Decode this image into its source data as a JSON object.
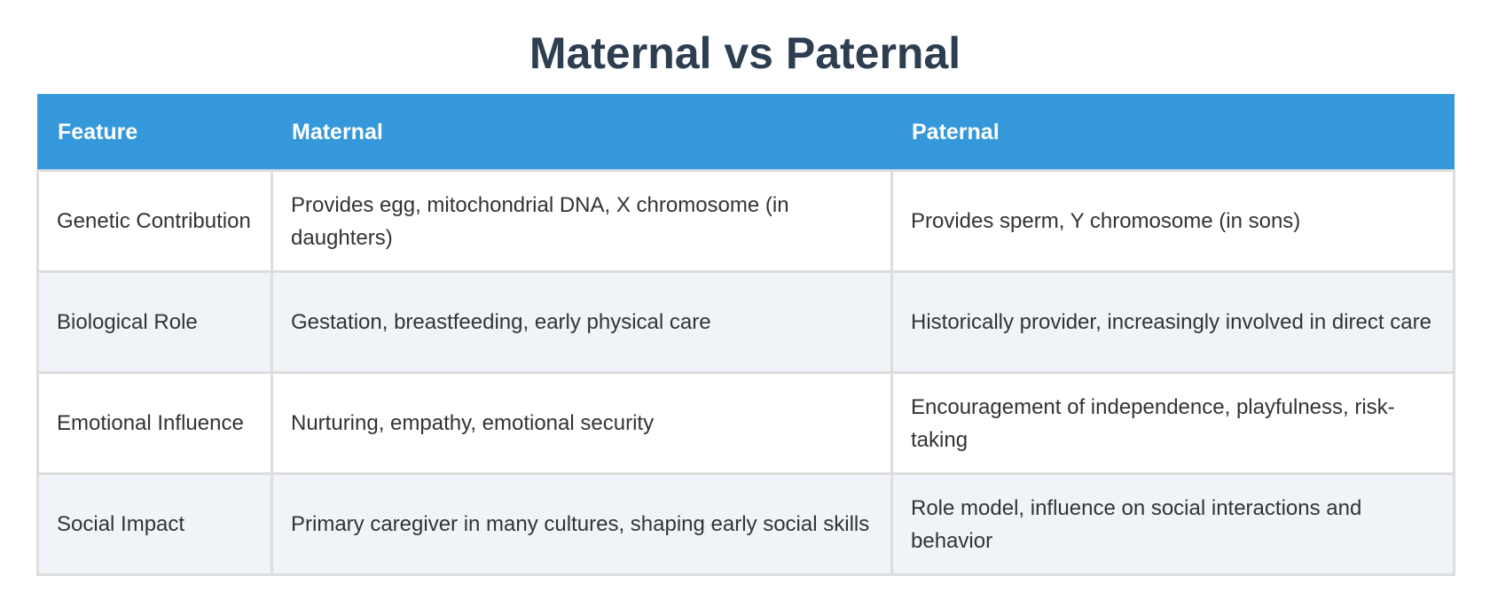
{
  "page": {
    "title": "Maternal vs Paternal"
  },
  "colors": {
    "title": "#2c3e50",
    "header_bg": "#3498db",
    "header_text": "#ffffff",
    "body_text": "#333333",
    "alt_row_bg": "#f0f4f9",
    "border": "#dddddd"
  },
  "table": {
    "headers": [
      "Feature",
      "Maternal",
      "Paternal"
    ],
    "rows": [
      {
        "feature": "Genetic Contribution",
        "maternal": "Provides egg, mitochondrial DNA, X chromosome (in daughters)",
        "paternal": "Provides sperm, Y chromosome (in sons)"
      },
      {
        "feature": "Biological Role",
        "maternal": "Gestation, breastfeeding, early physical care",
        "paternal": "Historically provider, increasingly involved in direct care"
      },
      {
        "feature": "Emotional Influence",
        "maternal": "Nurturing, empathy, emotional security",
        "paternal": "Encouragement of independence, playfulness, risk-taking"
      },
      {
        "feature": "Social Impact",
        "maternal": "Primary caregiver in many cultures, shaping early social skills",
        "paternal": "Role model, influence on social interactions and behavior"
      }
    ]
  }
}
